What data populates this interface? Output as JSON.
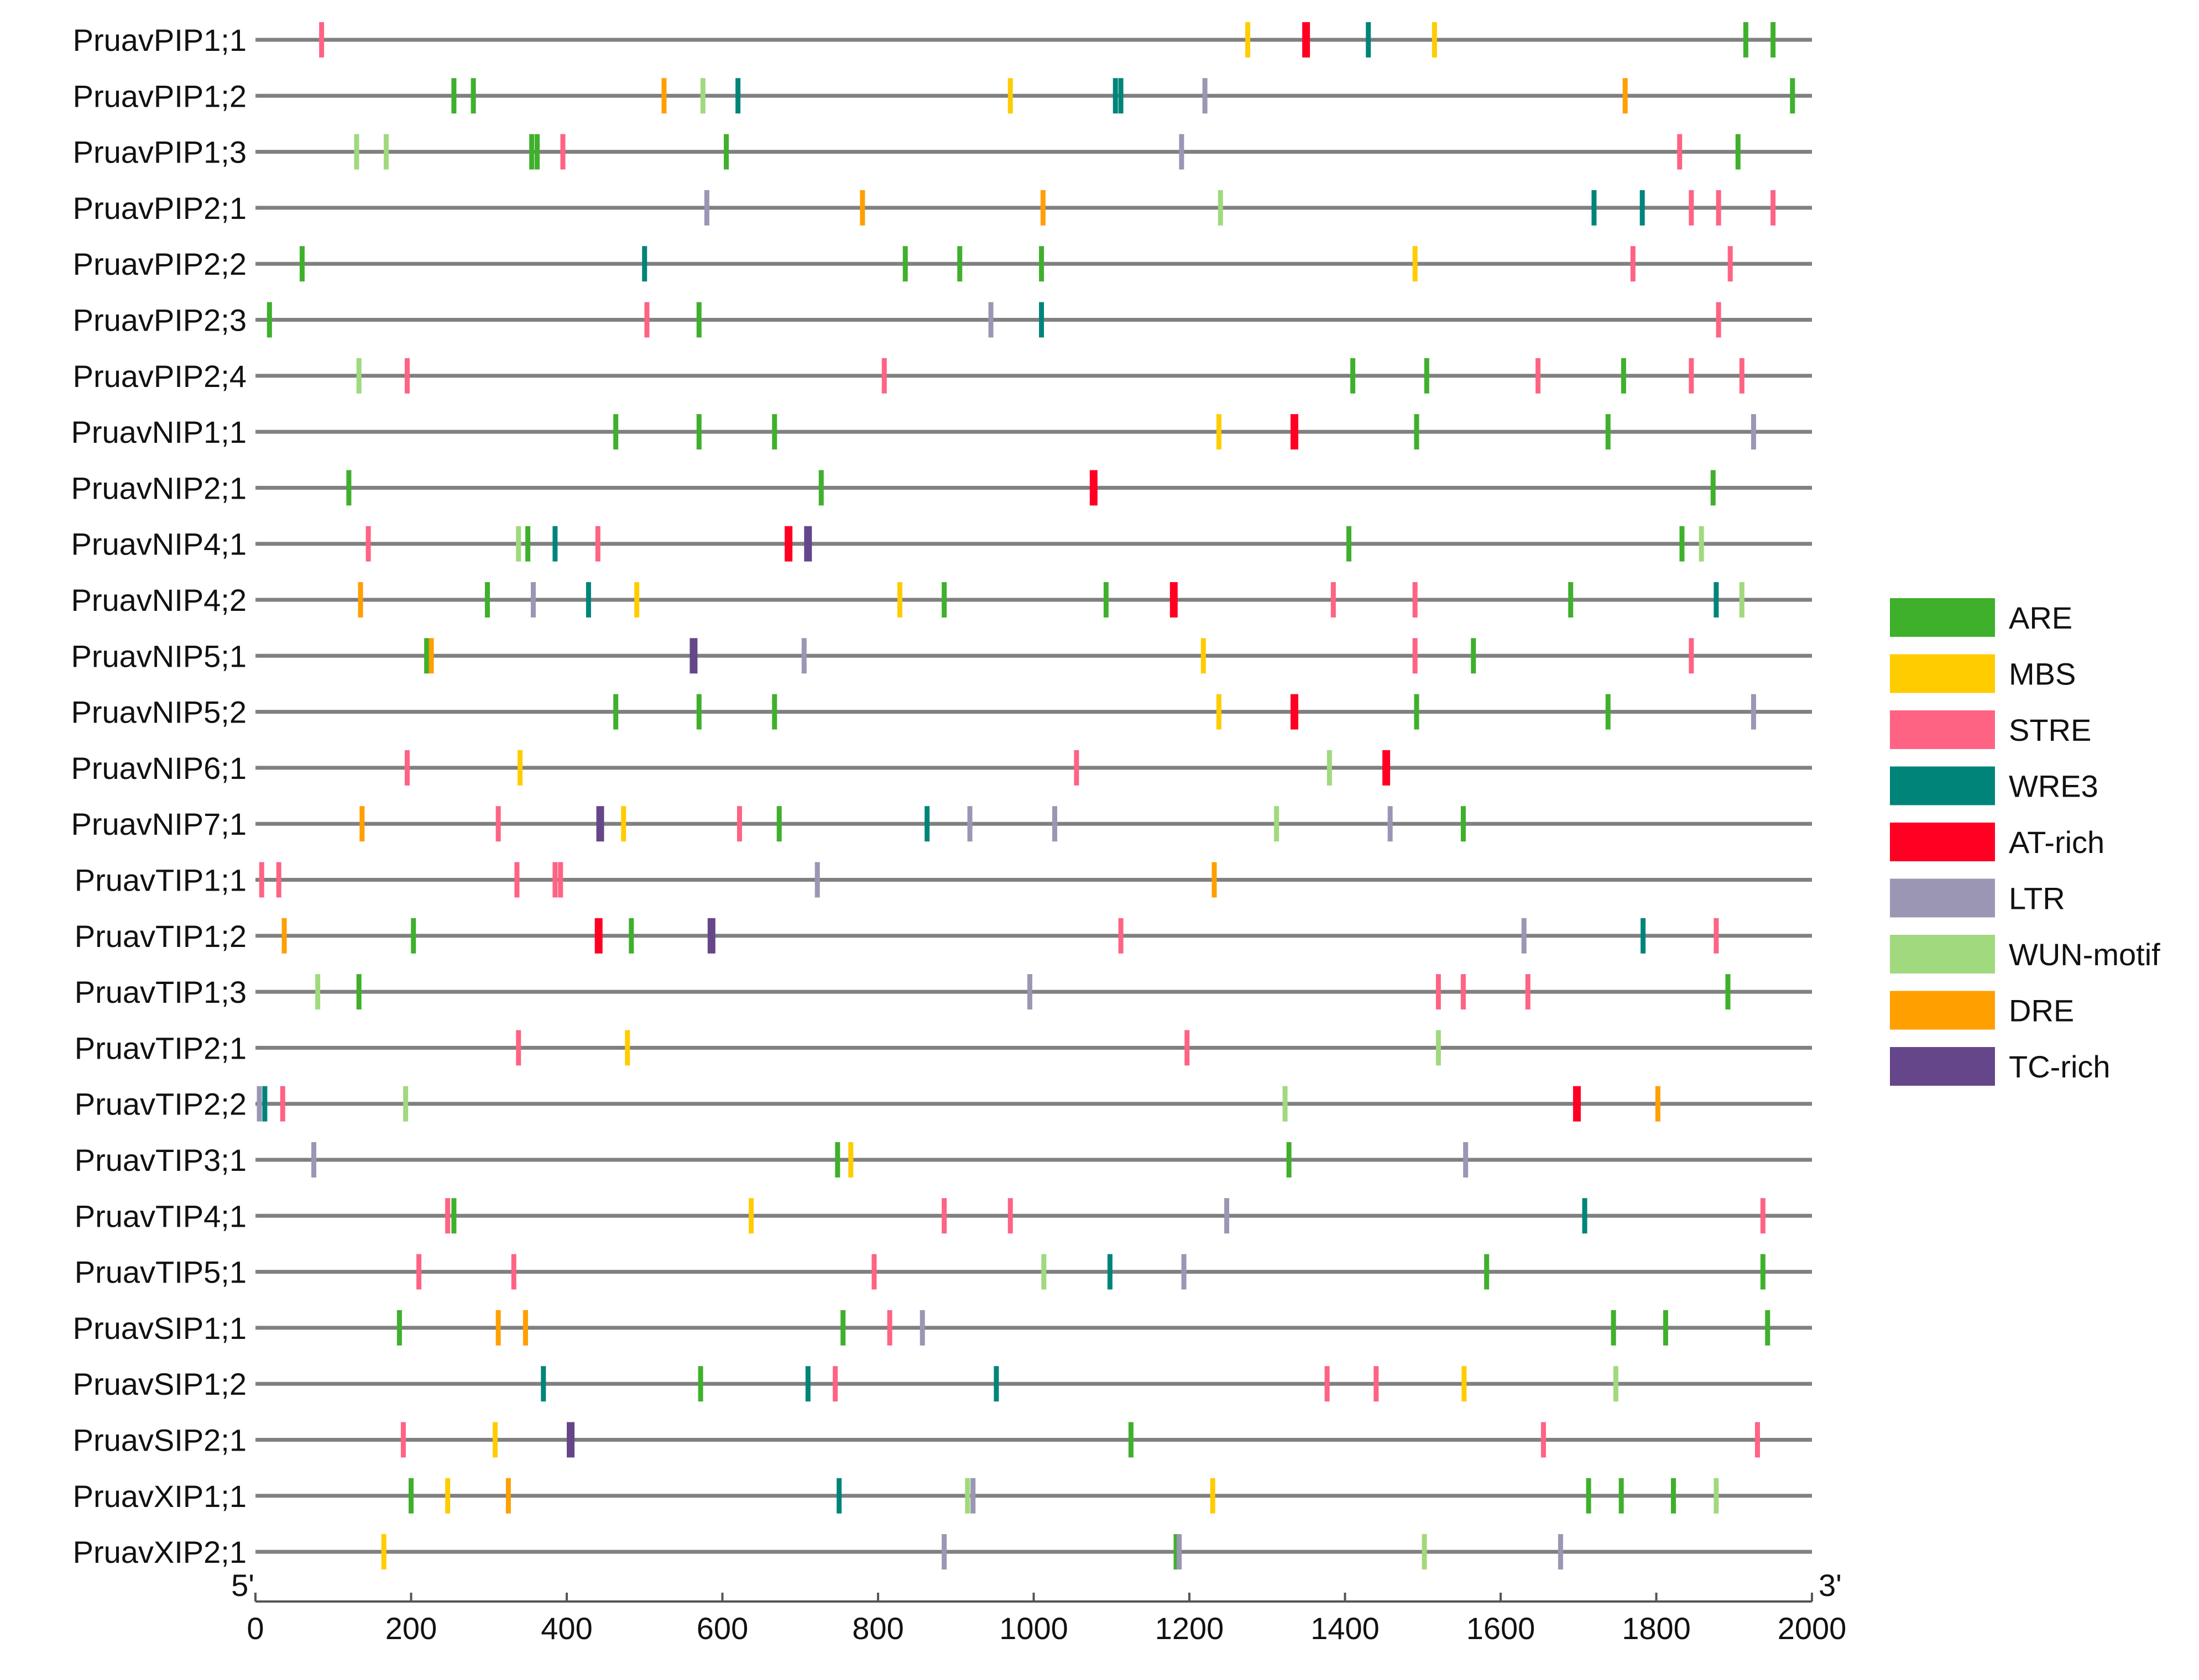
{
  "chart_data": {
    "type": "scatter",
    "xlim": [
      0,
      2000
    ],
    "x_ticks": [
      0,
      200,
      400,
      600,
      800,
      1000,
      1200,
      1400,
      1600,
      1800,
      2000
    ],
    "x_tick_labels": [
      "0",
      "200",
      "400",
      "600",
      "800",
      "1000",
      "1200",
      "1400",
      "1600",
      "1800",
      "2000"
    ],
    "left_end_label": "5'",
    "right_end_label": "3'",
    "legend_position": "right",
    "elements": [
      {
        "name": "ARE",
        "color": "#3fb02c"
      },
      {
        "name": "MBS",
        "color": "#ffcc00"
      },
      {
        "name": "STRE",
        "color": "#ff6384"
      },
      {
        "name": "WRE3",
        "color": "#00847a"
      },
      {
        "name": "AT-rich",
        "color": "#ff0022"
      },
      {
        "name": "LTR",
        "color": "#9a96b4"
      },
      {
        "name": "WUN-motif",
        "color": "#a1d97e"
      },
      {
        "name": "DRE",
        "color": "#ff9f00"
      },
      {
        "name": "TC-rich",
        "color": "#66468a"
      }
    ],
    "genes": [
      {
        "name": "PruavPIP1;1",
        "sites": [
          {
            "x": 85,
            "type": "STRE"
          },
          {
            "x": 1275,
            "type": "MBS"
          },
          {
            "x": 1350,
            "type": "AT-rich"
          },
          {
            "x": 1430,
            "type": "WRE3"
          },
          {
            "x": 1515,
            "type": "MBS"
          },
          {
            "x": 1915,
            "type": "ARE"
          },
          {
            "x": 1950,
            "type": "ARE"
          }
        ]
      },
      {
        "name": "PruavPIP1;2",
        "sites": [
          {
            "x": 255,
            "type": "ARE"
          },
          {
            "x": 280,
            "type": "ARE"
          },
          {
            "x": 525,
            "type": "DRE"
          },
          {
            "x": 575,
            "type": "WUN-motif"
          },
          {
            "x": 620,
            "type": "WRE3"
          },
          {
            "x": 970,
            "type": "MBS"
          },
          {
            "x": 1105,
            "type": "WRE3"
          },
          {
            "x": 1112,
            "type": "WRE3"
          },
          {
            "x": 1220,
            "type": "LTR"
          },
          {
            "x": 1760,
            "type": "DRE"
          },
          {
            "x": 1975,
            "type": "ARE"
          }
        ]
      },
      {
        "name": "PruavPIP1;3",
        "sites": [
          {
            "x": 130,
            "type": "WUN-motif"
          },
          {
            "x": 168,
            "type": "WUN-motif"
          },
          {
            "x": 355,
            "type": "ARE"
          },
          {
            "x": 362,
            "type": "ARE"
          },
          {
            "x": 395,
            "type": "STRE"
          },
          {
            "x": 605,
            "type": "ARE"
          },
          {
            "x": 1190,
            "type": "LTR"
          },
          {
            "x": 1830,
            "type": "STRE"
          },
          {
            "x": 1905,
            "type": "ARE"
          }
        ]
      },
      {
        "name": "PruavPIP2;1",
        "sites": [
          {
            "x": 580,
            "type": "LTR"
          },
          {
            "x": 780,
            "type": "DRE"
          },
          {
            "x": 1012,
            "type": "DRE"
          },
          {
            "x": 1240,
            "type": "WUN-motif"
          },
          {
            "x": 1720,
            "type": "WRE3"
          },
          {
            "x": 1782,
            "type": "WRE3"
          },
          {
            "x": 1845,
            "type": "STRE"
          },
          {
            "x": 1880,
            "type": "STRE"
          },
          {
            "x": 1950,
            "type": "STRE"
          }
        ]
      },
      {
        "name": "PruavPIP2;2",
        "sites": [
          {
            "x": 60,
            "type": "ARE"
          },
          {
            "x": 500,
            "type": "WRE3"
          },
          {
            "x": 835,
            "type": "ARE"
          },
          {
            "x": 905,
            "type": "ARE"
          },
          {
            "x": 1010,
            "type": "ARE"
          },
          {
            "x": 1490,
            "type": "MBS"
          },
          {
            "x": 1770,
            "type": "STRE"
          },
          {
            "x": 1895,
            "type": "STRE"
          }
        ]
      },
      {
        "name": "PruavPIP2;3",
        "sites": [
          {
            "x": 18,
            "type": "ARE"
          },
          {
            "x": 503,
            "type": "STRE"
          },
          {
            "x": 570,
            "type": "ARE"
          },
          {
            "x": 945,
            "type": "LTR"
          },
          {
            "x": 1010,
            "type": "WRE3"
          },
          {
            "x": 1880,
            "type": "STRE"
          }
        ]
      },
      {
        "name": "PruavPIP2;4",
        "sites": [
          {
            "x": 133,
            "type": "WUN-motif"
          },
          {
            "x": 195,
            "type": "STRE"
          },
          {
            "x": 808,
            "type": "STRE"
          },
          {
            "x": 1410,
            "type": "ARE"
          },
          {
            "x": 1505,
            "type": "ARE"
          },
          {
            "x": 1648,
            "type": "STRE"
          },
          {
            "x": 1758,
            "type": "ARE"
          },
          {
            "x": 1845,
            "type": "STRE"
          },
          {
            "x": 1910,
            "type": "STRE"
          }
        ]
      },
      {
        "name": "PruavNIP1;1",
        "sites": [
          {
            "x": 463,
            "type": "ARE"
          },
          {
            "x": 570,
            "type": "ARE"
          },
          {
            "x": 667,
            "type": "ARE"
          },
          {
            "x": 1238,
            "type": "MBS"
          },
          {
            "x": 1335,
            "type": "AT-rich"
          },
          {
            "x": 1492,
            "type": "ARE"
          },
          {
            "x": 1738,
            "type": "ARE"
          },
          {
            "x": 1925,
            "type": "LTR"
          }
        ]
      },
      {
        "name": "PruavNIP2;1",
        "sites": [
          {
            "x": 120,
            "type": "ARE"
          },
          {
            "x": 727,
            "type": "ARE"
          },
          {
            "x": 1077,
            "type": "AT-rich"
          },
          {
            "x": 1873,
            "type": "ARE"
          }
        ]
      },
      {
        "name": "PruavNIP4;1",
        "sites": [
          {
            "x": 145,
            "type": "STRE"
          },
          {
            "x": 338,
            "type": "WUN-motif"
          },
          {
            "x": 350,
            "type": "ARE"
          },
          {
            "x": 385,
            "type": "WRE3"
          },
          {
            "x": 440,
            "type": "STRE"
          },
          {
            "x": 685,
            "type": "AT-rich"
          },
          {
            "x": 710,
            "type": "TC-rich"
          },
          {
            "x": 1405,
            "type": "ARE"
          },
          {
            "x": 1833,
            "type": "ARE"
          },
          {
            "x": 1858,
            "type": "WUN-motif"
          }
        ]
      },
      {
        "name": "PruavNIP4;2",
        "sites": [
          {
            "x": 135,
            "type": "DRE"
          },
          {
            "x": 298,
            "type": "ARE"
          },
          {
            "x": 357,
            "type": "LTR"
          },
          {
            "x": 428,
            "type": "WRE3"
          },
          {
            "x": 490,
            "type": "MBS"
          },
          {
            "x": 828,
            "type": "MBS"
          },
          {
            "x": 885,
            "type": "ARE"
          },
          {
            "x": 1093,
            "type": "ARE"
          },
          {
            "x": 1180,
            "type": "AT-rich"
          },
          {
            "x": 1385,
            "type": "STRE"
          },
          {
            "x": 1490,
            "type": "STRE"
          },
          {
            "x": 1690,
            "type": "ARE"
          },
          {
            "x": 1877,
            "type": "WRE3"
          },
          {
            "x": 1910,
            "type": "WUN-motif"
          }
        ]
      },
      {
        "name": "PruavNIP5;1",
        "sites": [
          {
            "x": 220,
            "type": "ARE"
          },
          {
            "x": 226,
            "type": "DRE"
          },
          {
            "x": 563,
            "type": "TC-rich"
          },
          {
            "x": 705,
            "type": "LTR"
          },
          {
            "x": 1218,
            "type": "MBS"
          },
          {
            "x": 1490,
            "type": "STRE"
          },
          {
            "x": 1565,
            "type": "ARE"
          },
          {
            "x": 1845,
            "type": "STRE"
          }
        ]
      },
      {
        "name": "PruavNIP5;2",
        "sites": [
          {
            "x": 463,
            "type": "ARE"
          },
          {
            "x": 570,
            "type": "ARE"
          },
          {
            "x": 667,
            "type": "ARE"
          },
          {
            "x": 1238,
            "type": "MBS"
          },
          {
            "x": 1335,
            "type": "AT-rich"
          },
          {
            "x": 1492,
            "type": "ARE"
          },
          {
            "x": 1738,
            "type": "ARE"
          },
          {
            "x": 1925,
            "type": "LTR"
          }
        ]
      },
      {
        "name": "PruavNIP6;1",
        "sites": [
          {
            "x": 195,
            "type": "STRE"
          },
          {
            "x": 340,
            "type": "MBS"
          },
          {
            "x": 1055,
            "type": "STRE"
          },
          {
            "x": 1380,
            "type": "WUN-motif"
          },
          {
            "x": 1453,
            "type": "AT-rich"
          }
        ]
      },
      {
        "name": "PruavNIP7;1",
        "sites": [
          {
            "x": 137,
            "type": "DRE"
          },
          {
            "x": 312,
            "type": "STRE"
          },
          {
            "x": 443,
            "type": "TC-rich"
          },
          {
            "x": 473,
            "type": "MBS"
          },
          {
            "x": 622,
            "type": "STRE"
          },
          {
            "x": 673,
            "type": "ARE"
          },
          {
            "x": 863,
            "type": "WRE3"
          },
          {
            "x": 918,
            "type": "LTR"
          },
          {
            "x": 1027,
            "type": "LTR"
          },
          {
            "x": 1312,
            "type": "WUN-motif"
          },
          {
            "x": 1458,
            "type": "LTR"
          },
          {
            "x": 1552,
            "type": "ARE"
          }
        ]
      },
      {
        "name": "PruavTIP1;1",
        "sites": [
          {
            "x": 8,
            "type": "STRE"
          },
          {
            "x": 30,
            "type": "STRE"
          },
          {
            "x": 336,
            "type": "STRE"
          },
          {
            "x": 385,
            "type": "STRE"
          },
          {
            "x": 392,
            "type": "STRE"
          },
          {
            "x": 722,
            "type": "LTR"
          },
          {
            "x": 1232,
            "type": "DRE"
          }
        ]
      },
      {
        "name": "PruavTIP1;2",
        "sites": [
          {
            "x": 37,
            "type": "DRE"
          },
          {
            "x": 203,
            "type": "ARE"
          },
          {
            "x": 441,
            "type": "AT-rich"
          },
          {
            "x": 483,
            "type": "ARE"
          },
          {
            "x": 586,
            "type": "TC-rich"
          },
          {
            "x": 1112,
            "type": "STRE"
          },
          {
            "x": 1630,
            "type": "LTR"
          },
          {
            "x": 1783,
            "type": "WRE3"
          },
          {
            "x": 1877,
            "type": "STRE"
          }
        ]
      },
      {
        "name": "PruavTIP1;3",
        "sites": [
          {
            "x": 80,
            "type": "WUN-motif"
          },
          {
            "x": 133,
            "type": "ARE"
          },
          {
            "x": 995,
            "type": "LTR"
          },
          {
            "x": 1520,
            "type": "STRE"
          },
          {
            "x": 1552,
            "type": "STRE"
          },
          {
            "x": 1635,
            "type": "STRE"
          },
          {
            "x": 1892,
            "type": "ARE"
          }
        ]
      },
      {
        "name": "PruavTIP2;1",
        "sites": [
          {
            "x": 338,
            "type": "STRE"
          },
          {
            "x": 478,
            "type": "MBS"
          },
          {
            "x": 1197,
            "type": "STRE"
          },
          {
            "x": 1520,
            "type": "WUN-motif"
          }
        ]
      },
      {
        "name": "PruavTIP2;2",
        "sites": [
          {
            "x": 5,
            "type": "LTR"
          },
          {
            "x": 12,
            "type": "WRE3"
          },
          {
            "x": 35,
            "type": "STRE"
          },
          {
            "x": 193,
            "type": "WUN-motif"
          },
          {
            "x": 1323,
            "type": "WUN-motif"
          },
          {
            "x": 1698,
            "type": "AT-rich"
          },
          {
            "x": 1802,
            "type": "DRE"
          }
        ]
      },
      {
        "name": "PruavTIP3;1",
        "sites": [
          {
            "x": 75,
            "type": "LTR"
          },
          {
            "x": 748,
            "type": "ARE"
          },
          {
            "x": 765,
            "type": "MBS"
          },
          {
            "x": 1328,
            "type": "ARE"
          },
          {
            "x": 1555,
            "type": "LTR"
          }
        ]
      },
      {
        "name": "PruavTIP4;1",
        "sites": [
          {
            "x": 247,
            "type": "STRE"
          },
          {
            "x": 255,
            "type": "ARE"
          },
          {
            "x": 637,
            "type": "MBS"
          },
          {
            "x": 885,
            "type": "STRE"
          },
          {
            "x": 970,
            "type": "STRE"
          },
          {
            "x": 1248,
            "type": "LTR"
          },
          {
            "x": 1708,
            "type": "WRE3"
          },
          {
            "x": 1937,
            "type": "STRE"
          }
        ]
      },
      {
        "name": "PruavTIP5;1",
        "sites": [
          {
            "x": 210,
            "type": "STRE"
          },
          {
            "x": 332,
            "type": "STRE"
          },
          {
            "x": 795,
            "type": "STRE"
          },
          {
            "x": 1013,
            "type": "WUN-motif"
          },
          {
            "x": 1098,
            "type": "WRE3"
          },
          {
            "x": 1193,
            "type": "LTR"
          },
          {
            "x": 1582,
            "type": "ARE"
          },
          {
            "x": 1937,
            "type": "ARE"
          }
        ]
      },
      {
        "name": "PruavSIP1;1",
        "sites": [
          {
            "x": 185,
            "type": "ARE"
          },
          {
            "x": 312,
            "type": "DRE"
          },
          {
            "x": 347,
            "type": "DRE"
          },
          {
            "x": 755,
            "type": "ARE"
          },
          {
            "x": 815,
            "type": "STRE"
          },
          {
            "x": 857,
            "type": "LTR"
          },
          {
            "x": 1745,
            "type": "ARE"
          },
          {
            "x": 1812,
            "type": "ARE"
          },
          {
            "x": 1943,
            "type": "ARE"
          }
        ]
      },
      {
        "name": "PruavSIP1;2",
        "sites": [
          {
            "x": 370,
            "type": "WRE3"
          },
          {
            "x": 572,
            "type": "ARE"
          },
          {
            "x": 710,
            "type": "WRE3"
          },
          {
            "x": 745,
            "type": "STRE"
          },
          {
            "x": 952,
            "type": "WRE3"
          },
          {
            "x": 1377,
            "type": "STRE"
          },
          {
            "x": 1440,
            "type": "STRE"
          },
          {
            "x": 1553,
            "type": "MBS"
          },
          {
            "x": 1748,
            "type": "WUN-motif"
          }
        ]
      },
      {
        "name": "PruavSIP2;1",
        "sites": [
          {
            "x": 190,
            "type": "STRE"
          },
          {
            "x": 308,
            "type": "MBS"
          },
          {
            "x": 405,
            "type": "TC-rich"
          },
          {
            "x": 1125,
            "type": "ARE"
          },
          {
            "x": 1655,
            "type": "STRE"
          },
          {
            "x": 1930,
            "type": "STRE"
          }
        ]
      },
      {
        "name": "PruavXIP1;1",
        "sites": [
          {
            "x": 200,
            "type": "ARE"
          },
          {
            "x": 247,
            "type": "MBS"
          },
          {
            "x": 325,
            "type": "DRE"
          },
          {
            "x": 750,
            "type": "WRE3"
          },
          {
            "x": 915,
            "type": "WUN-motif"
          },
          {
            "x": 922,
            "type": "LTR"
          },
          {
            "x": 1230,
            "type": "MBS"
          },
          {
            "x": 1713,
            "type": "ARE"
          },
          {
            "x": 1755,
            "type": "ARE"
          },
          {
            "x": 1822,
            "type": "ARE"
          },
          {
            "x": 1877,
            "type": "WUN-motif"
          }
        ]
      },
      {
        "name": "PruavXIP2;1",
        "sites": [
          {
            "x": 165,
            "type": "MBS"
          },
          {
            "x": 885,
            "type": "LTR"
          },
          {
            "x": 1183,
            "type": "ARE"
          },
          {
            "x": 1187,
            "type": "LTR"
          },
          {
            "x": 1502,
            "type": "WUN-motif"
          },
          {
            "x": 1677,
            "type": "LTR"
          }
        ]
      }
    ]
  }
}
